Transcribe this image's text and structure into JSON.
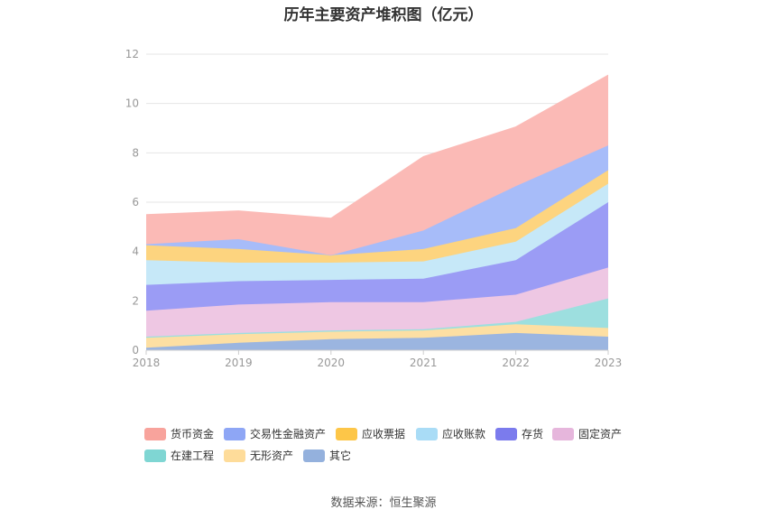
{
  "chart_data": {
    "type": "area",
    "stacked": true,
    "title": "历年主要资产堆积图（亿元）",
    "x": [
      "2018",
      "2019",
      "2020",
      "2021",
      "2022",
      "2023"
    ],
    "ylim": [
      0,
      12
    ],
    "yticks": [
      "0",
      "2",
      "4",
      "6",
      "8",
      "10",
      "12"
    ],
    "grid": true,
    "legend_position": "bottom",
    "series": [
      {
        "name": "其它",
        "color": "#9bb5e0",
        "values": [
          0.1,
          0.3,
          0.45,
          0.5,
          0.7,
          0.55
        ]
      },
      {
        "name": "无形资产",
        "color": "#fddfa3",
        "values": [
          0.4,
          0.35,
          0.3,
          0.3,
          0.35,
          0.35
        ]
      },
      {
        "name": "在建工程",
        "color": "#9ddfdf",
        "values": [
          0.05,
          0.05,
          0.05,
          0.05,
          0.1,
          1.2
        ]
      },
      {
        "name": "固定资产",
        "color": "#eec7e3",
        "values": [
          1.05,
          1.15,
          1.15,
          1.1,
          1.1,
          1.25
        ]
      },
      {
        "name": "存货",
        "color": "#9b9cf5",
        "values": [
          1.05,
          0.95,
          0.9,
          0.95,
          1.4,
          2.65
        ]
      },
      {
        "name": "应收账款",
        "color": "#c6e8f8",
        "values": [
          1.0,
          0.75,
          0.7,
          0.7,
          0.75,
          0.75
        ]
      },
      {
        "name": "应收票据",
        "color": "#fdd47f",
        "values": [
          0.6,
          0.55,
          0.3,
          0.5,
          0.55,
          0.55
        ]
      },
      {
        "name": "交易性金融资产",
        "color": "#a7bcf9",
        "values": [
          0.05,
          0.4,
          0.0,
          0.75,
          1.7,
          1.0
        ]
      },
      {
        "name": "货币资金",
        "color": "#fbbab6",
        "values": [
          1.2,
          1.15,
          1.5,
          3.0,
          2.4,
          2.85
        ]
      }
    ]
  },
  "legend": {
    "items": [
      {
        "label": "货币资金",
        "color": "#f8a39c"
      },
      {
        "label": "交易性金融资产",
        "color": "#8ea6f5"
      },
      {
        "label": "应收票据",
        "color": "#fdc648"
      },
      {
        "label": "应收账款",
        "color": "#a9dcf6"
      },
      {
        "label": "存货",
        "color": "#7b7bed"
      },
      {
        "label": "固定资产",
        "color": "#e6b6dc"
      },
      {
        "label": "在建工程",
        "color": "#7fd6d3"
      },
      {
        "label": "无形资产",
        "color": "#fedc9a"
      },
      {
        "label": "其它",
        "color": "#94b1dd"
      }
    ]
  },
  "source_text": "数据来源：恒生聚源"
}
